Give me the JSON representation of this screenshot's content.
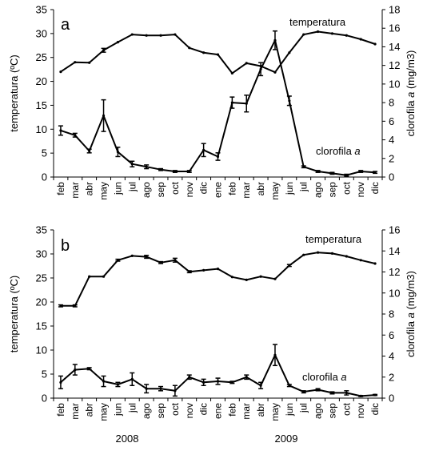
{
  "chart_data": [
    {
      "type": "line",
      "panel_label": "a",
      "categories": [
        "feb",
        "mar",
        "abr",
        "may",
        "jun",
        "jul",
        "ago",
        "sep",
        "oct",
        "nov",
        "dic",
        "ene",
        "feb",
        "mar",
        "abr",
        "may",
        "jun",
        "jul",
        "ago",
        "sep",
        "oct",
        "nov",
        "dic"
      ],
      "ylabel_left": "temperatura (ºC)",
      "ylabel_right": "clorofila a (mg/m3)",
      "ylim_left": [
        0,
        35
      ],
      "yticks_left": [
        0,
        5,
        10,
        15,
        20,
        25,
        30,
        35
      ],
      "ylim_right": [
        0,
        18
      ],
      "yticks_right": [
        0,
        2,
        4,
        6,
        8,
        10,
        12,
        14,
        16,
        18
      ],
      "series": [
        {
          "name": "temperatura",
          "axis": "left",
          "values": [
            22.0,
            24.0,
            23.9,
            26.5,
            28.2,
            29.8,
            29.6,
            29.6,
            29.8,
            27.0,
            26.0,
            25.6,
            21.7,
            23.8,
            23.2,
            21.9,
            26.0,
            29.8,
            30.4,
            30.0,
            29.6,
            28.8,
            27.8
          ],
          "errors": [
            0,
            0,
            0,
            0.4,
            0,
            0,
            0,
            0,
            0,
            0,
            0,
            0,
            0,
            0,
            0,
            0,
            0,
            0,
            0,
            0,
            0,
            0,
            0
          ]
        },
        {
          "name": "clorofila a",
          "axis": "right",
          "values": [
            5.0,
            4.5,
            2.8,
            6.6,
            2.7,
            1.4,
            1.1,
            0.8,
            0.6,
            0.6,
            2.9,
            2.2,
            8.0,
            7.9,
            11.6,
            14.7,
            8.2,
            1.1,
            0.6,
            0.4,
            0.2,
            0.6,
            0.5
          ],
          "errors": [
            0.5,
            0.2,
            0.2,
            1.7,
            0.5,
            0.3,
            0.2,
            0.1,
            0.1,
            0.1,
            0.7,
            0.4,
            0.6,
            0.9,
            0.7,
            1.0,
            0.5,
            0.1,
            0.1,
            0.1,
            0.1,
            0.1,
            0.1
          ]
        }
      ]
    },
    {
      "type": "line",
      "panel_label": "b",
      "categories": [
        "feb",
        "mar",
        "abr",
        "may",
        "jun",
        "jul",
        "ago",
        "sep",
        "oct",
        "nov",
        "dic",
        "ene",
        "feb",
        "mar",
        "abr",
        "may",
        "jun",
        "jul",
        "ago",
        "sep",
        "oct",
        "nov",
        "dic"
      ],
      "year_labels": [
        "2008",
        "2009"
      ],
      "ylabel_left": "temperatura (ºC)",
      "ylabel_right": "clorofila a (mg/m3)",
      "ylim_left": [
        0,
        35
      ],
      "yticks_left": [
        0,
        5,
        10,
        15,
        20,
        25,
        30,
        35
      ],
      "ylim_right": [
        0,
        16
      ],
      "yticks_right": [
        0,
        2,
        4,
        6,
        8,
        10,
        12,
        14,
        16
      ],
      "series": [
        {
          "name": "temperatura",
          "axis": "left",
          "values": [
            19.2,
            19.2,
            25.3,
            25.3,
            28.7,
            29.6,
            29.4,
            28.2,
            28.7,
            26.3,
            26.6,
            26.9,
            25.2,
            24.6,
            25.3,
            24.8,
            27.6,
            29.8,
            30.3,
            30.1,
            29.5,
            28.7,
            28.0
          ],
          "errors": [
            0.2,
            0.2,
            0,
            0,
            0.2,
            0,
            0.3,
            0.2,
            0.4,
            0.2,
            0,
            0,
            0,
            0,
            0,
            0,
            0.2,
            0,
            0,
            0,
            0,
            0,
            0
          ]
        },
        {
          "name": "clorofila a",
          "axis": "right",
          "values": [
            1.5,
            2.7,
            2.8,
            1.6,
            1.3,
            1.8,
            0.9,
            0.9,
            0.7,
            2.0,
            1.5,
            1.6,
            1.5,
            2.0,
            1.2,
            4.1,
            1.2,
            0.6,
            0.8,
            0.5,
            0.5,
            0.2,
            0.3
          ],
          "errors": [
            0.6,
            0.5,
            0.1,
            0.5,
            0.2,
            0.6,
            0.4,
            0.2,
            0.5,
            0.2,
            0.3,
            0.3,
            0.1,
            0.2,
            0.3,
            1.0,
            0.1,
            0.1,
            0.1,
            0.1,
            0.2,
            0.05,
            0.05
          ]
        }
      ]
    }
  ]
}
